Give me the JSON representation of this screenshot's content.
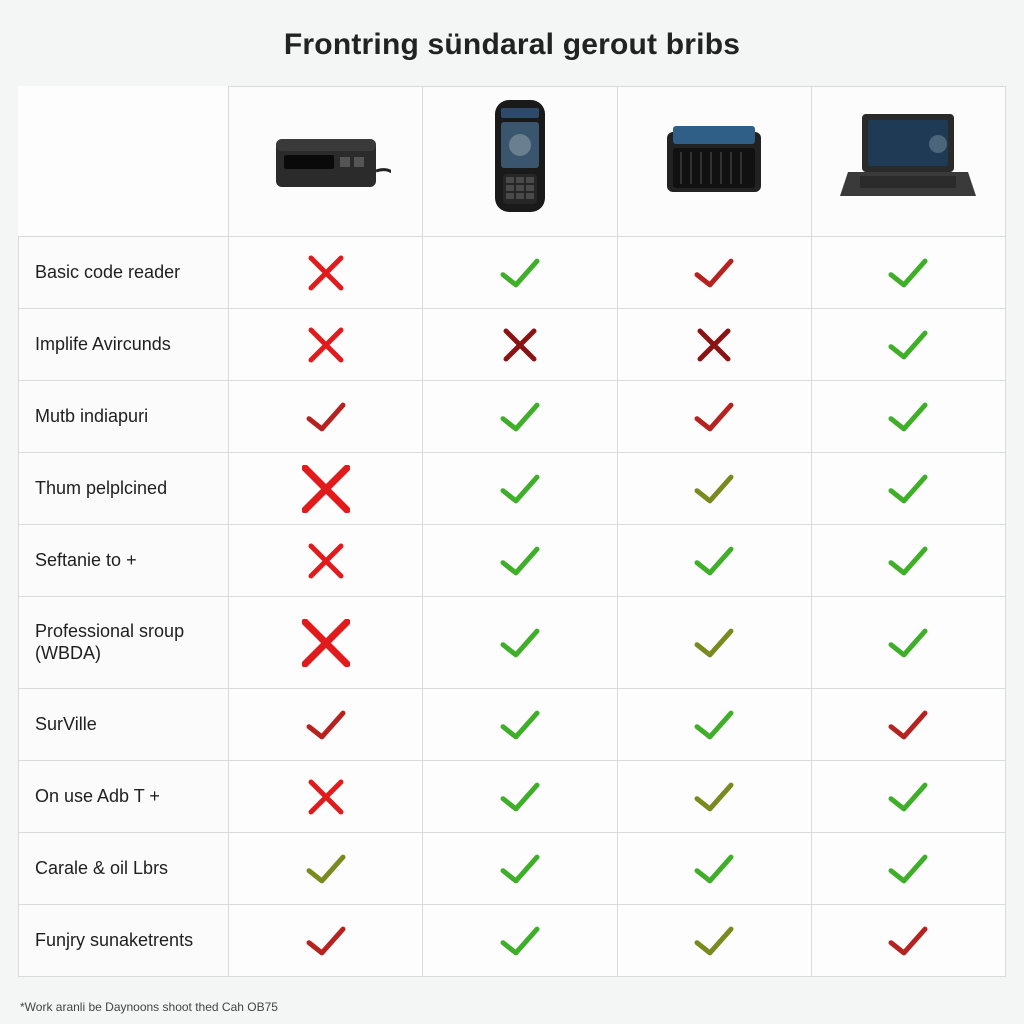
{
  "title": "Frontring sündaral gerout bribs",
  "footnote": "*Work aranli be Daynoons shoot thed Cah OB75",
  "colors": {
    "check_green": "#3fae29",
    "check_dark": "#7a8a1f",
    "check_red": "#b5221f",
    "cross_red": "#e11b1b",
    "cross_dark": "#8a1414",
    "grid": "#d9dadb",
    "row_bg": "#fbfbfb",
    "page_bg": "#f4f5f5"
  },
  "mark_styles": {
    "xr": {
      "glyph": "cross",
      "stroke": "#e11b1b",
      "size": 30,
      "weight": 5
    },
    "xr_big": {
      "glyph": "cross",
      "stroke": "#e11b1b",
      "size": 42,
      "weight": 7
    },
    "xd": {
      "glyph": "cross",
      "stroke": "#8a1414",
      "size": 28,
      "weight": 5
    },
    "cg": {
      "glyph": "check",
      "stroke": "#3fae29",
      "size": 34,
      "weight": 5
    },
    "cd": {
      "glyph": "check",
      "stroke": "#7a8a1f",
      "size": 34,
      "weight": 5
    },
    "cr": {
      "glyph": "check",
      "stroke": "#b5221f",
      "size": 34,
      "weight": 5
    }
  },
  "devices": [
    {
      "id": "obd-box",
      "name": "OBD interface box"
    },
    {
      "id": "handheld",
      "name": "Handheld scanner"
    },
    {
      "id": "ecu-unit",
      "name": "ECU / diagnostic module"
    },
    {
      "id": "laptop",
      "name": "Rugged laptop"
    }
  ],
  "rows": [
    {
      "label": "Basic code reader",
      "marks": [
        "xr",
        "cg",
        "cr",
        "cg"
      ]
    },
    {
      "label": "Implife Avircunds",
      "marks": [
        "xr",
        "xd",
        "xd",
        "cg"
      ]
    },
    {
      "label": "Mutb indiapuri",
      "marks": [
        "cr",
        "cg",
        "cr",
        "cg"
      ]
    },
    {
      "label": "Thum pelplcined",
      "marks": [
        "xr_big",
        "cg",
        "cd",
        "cg"
      ]
    },
    {
      "label": "Seftanie to +",
      "marks": [
        "xr",
        "cg",
        "cg",
        "cg"
      ]
    },
    {
      "label": "Professional sroup\n(WBDA)",
      "marks": [
        "xr_big",
        "cg",
        "cd",
        "cg"
      ],
      "tall": true
    },
    {
      "label": "SurVille",
      "marks": [
        "cr",
        "cg",
        "cg",
        "cr"
      ]
    },
    {
      "label": "On use Adb T +",
      "marks": [
        "xr",
        "cg",
        "cd",
        "cg"
      ]
    },
    {
      "label": "Carale & oil Lbrs",
      "marks": [
        "cd",
        "cg",
        "cg",
        "cg"
      ]
    },
    {
      "label": "Funjry sunaketrents",
      "marks": [
        "cr",
        "cg",
        "cd",
        "cr"
      ]
    }
  ]
}
